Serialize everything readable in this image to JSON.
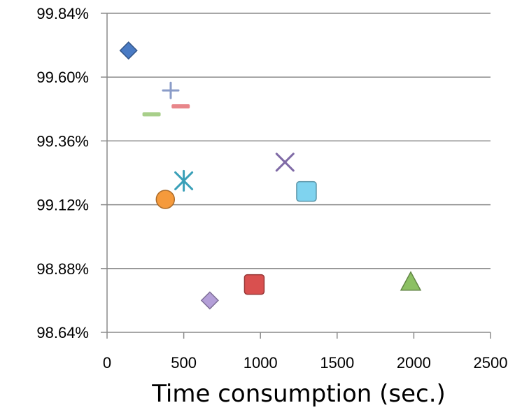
{
  "chart_data": {
    "type": "scatter",
    "title": "",
    "xlabel": "Time consumption (sec.)",
    "ylabel": "",
    "xlim": [
      0,
      2500
    ],
    "ylim": [
      98.64,
      99.84
    ],
    "x_ticks": [
      "0",
      "500",
      "1000",
      "1500",
      "2000",
      "2500"
    ],
    "y_ticks": [
      "98.64%",
      "98.88%",
      "99.12%",
      "99.36%",
      "99.60%",
      "99.84%"
    ],
    "grid": "horizontal",
    "legend": "none",
    "series": [
      {
        "marker": "diamond",
        "color": "#4a7bc4",
        "x": 140,
        "y": 99.7
      },
      {
        "marker": "plus",
        "color": "#8a9cc8",
        "x": 415,
        "y": 99.55
      },
      {
        "marker": "dash",
        "color": "#e8868a",
        "x": 480,
        "y": 99.49
      },
      {
        "marker": "dash",
        "color": "#a8cf8a",
        "x": 290,
        "y": 99.46
      },
      {
        "marker": "x",
        "color": "#7f6aa6",
        "x": 1160,
        "y": 99.28
      },
      {
        "marker": "star",
        "color": "#3aa0b8",
        "x": 500,
        "y": 99.21
      },
      {
        "marker": "circle",
        "color": "#f59a3c",
        "x": 380,
        "y": 99.14
      },
      {
        "marker": "square",
        "color": "#7fd3ef",
        "x": 1300,
        "y": 99.17
      },
      {
        "marker": "square",
        "color": "#d9504f",
        "x": 960,
        "y": 98.82
      },
      {
        "marker": "triangle",
        "color": "#8cc063",
        "x": 1980,
        "y": 98.83
      },
      {
        "marker": "diamond",
        "color": "#b49fd8",
        "x": 670,
        "y": 98.76
      }
    ]
  }
}
